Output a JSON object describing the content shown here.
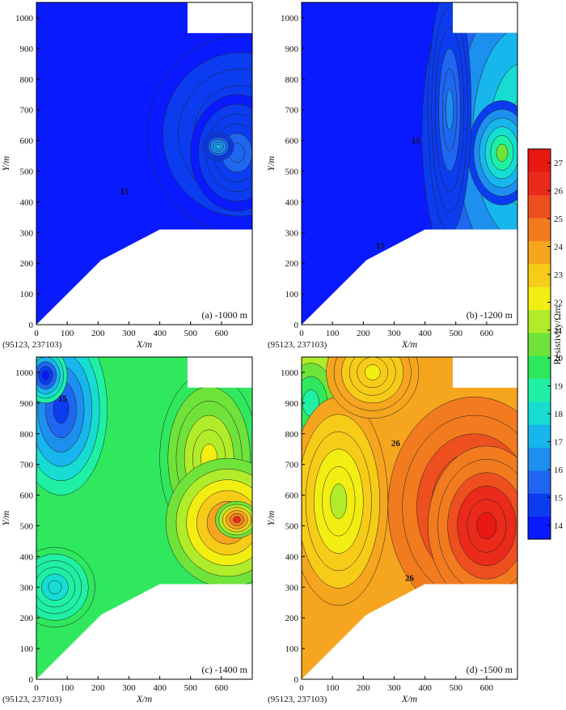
{
  "colorbar": {
    "label": "Resistivity/Ωm",
    "min": 13.5,
    "max": 27.5,
    "ticks": [
      14,
      15,
      16,
      17,
      18,
      19,
      20,
      21,
      22,
      23,
      24,
      25,
      26,
      27
    ],
    "colors": [
      "#0a1aff",
      "#0b3cf0",
      "#1f66f0",
      "#1d8fef",
      "#17b6ec",
      "#16dcd2",
      "#1ff0a4",
      "#2fe85e",
      "#6fe33a",
      "#b0ec2a",
      "#f2ee12",
      "#f7cc19",
      "#f6a51f",
      "#f27b1f",
      "#ee4f1f",
      "#ea2a1a",
      "#e81813"
    ]
  },
  "chart_data": [
    {
      "type": "heatmap",
      "panel": "a",
      "label": "(a) -1000 m",
      "xlabel": "X/m",
      "ylabel": "Y/m",
      "xlim": [
        0,
        700
      ],
      "ylim": [
        0,
        1050
      ],
      "xticks": [
        0,
        100,
        200,
        300,
        400,
        500,
        600
      ],
      "yticks": [
        0,
        100,
        200,
        300,
        400,
        500,
        600,
        700,
        800,
        900,
        1000
      ],
      "origin_label": "(95123, 237103)",
      "contour_labels": [
        {
          "value": "15",
          "x": 285,
          "y": 425
        }
      ],
      "bg_value": 14.0,
      "blobs": [
        {
          "x": 660,
          "y": 620,
          "rx": 300,
          "ry": 320,
          "v": 15.0
        },
        {
          "x": 650,
          "y": 560,
          "rx": 150,
          "ry": 190,
          "v": 15.7
        },
        {
          "x": 590,
          "y": 580,
          "rx": 50,
          "ry": 45,
          "v": 17.0
        }
      ]
    },
    {
      "type": "heatmap",
      "panel": "b",
      "label": "(b) -1200 m",
      "xlabel": "X/m",
      "ylabel": "Y/m",
      "xlim": [
        0,
        700
      ],
      "ylim": [
        0,
        1050
      ],
      "xticks": [
        0,
        100,
        200,
        300,
        400,
        500,
        600
      ],
      "yticks": [
        0,
        100,
        200,
        300,
        400,
        500,
        600,
        700,
        800,
        900,
        1000
      ],
      "origin_label": "(95123, 237103)",
      "contour_labels": [
        {
          "value": "15",
          "x": 370,
          "y": 590
        },
        {
          "value": "15",
          "x": 255,
          "y": 248
        }
      ],
      "bg_value": 14.0,
      "blobs": [
        {
          "x": 720,
          "y": 620,
          "rx": 330,
          "ry": 700,
          "v": 19.0
        },
        {
          "x": 650,
          "y": 560,
          "rx": 110,
          "ry": 170,
          "v": 20.2
        },
        {
          "x": 480,
          "y": 700,
          "rx": 70,
          "ry": 400,
          "v": 16.0
        }
      ]
    },
    {
      "type": "heatmap",
      "panel": "c",
      "label": "(c) -1400 m",
      "xlabel": "X/m",
      "ylabel": "Y/m",
      "xlim": [
        0,
        700
      ],
      "ylim": [
        0,
        1050
      ],
      "xticks": [
        0,
        100,
        200,
        300,
        400,
        500,
        600
      ],
      "yticks": [
        0,
        100,
        200,
        300,
        400,
        500,
        600,
        700,
        800,
        900,
        1000
      ],
      "origin_label": "(95123, 237103)",
      "contour_labels": [
        {
          "value": "15",
          "x": 85,
          "y": 905
        }
      ],
      "bg_value": 19.5,
      "blobs": [
        {
          "x": 80,
          "y": 880,
          "rx": 150,
          "ry": 280,
          "v": 15.0
        },
        {
          "x": 30,
          "y": 990,
          "rx": 70,
          "ry": 90,
          "v": 14.2
        },
        {
          "x": 560,
          "y": 720,
          "rx": 160,
          "ry": 280,
          "v": 21.8
        },
        {
          "x": 620,
          "y": 510,
          "rx": 200,
          "ry": 210,
          "v": 24.5
        },
        {
          "x": 650,
          "y": 520,
          "rx": 70,
          "ry": 60,
          "v": 26.0
        },
        {
          "x": 60,
          "y": 300,
          "rx": 130,
          "ry": 130,
          "v": 18.2
        }
      ]
    },
    {
      "type": "heatmap",
      "panel": "d",
      "label": "(d) -1500 m",
      "xlabel": "X/m",
      "ylabel": "Y/m",
      "xlim": [
        0,
        700
      ],
      "ylim": [
        0,
        1050
      ],
      "xticks": [
        0,
        100,
        200,
        300,
        400,
        500,
        600
      ],
      "yticks": [
        0,
        100,
        200,
        300,
        400,
        500,
        600,
        700,
        800,
        900,
        1000
      ],
      "origin_label": "(95123, 237103)",
      "contour_labels": [
        {
          "value": "26",
          "x": 305,
          "y": 760
        },
        {
          "value": "26",
          "x": 350,
          "y": 320
        }
      ],
      "bg_value": 24.0,
      "blobs": [
        {
          "x": 560,
          "y": 560,
          "rx": 280,
          "ry": 360,
          "v": 26.5
        },
        {
          "x": 600,
          "y": 500,
          "rx": 190,
          "ry": 260,
          "v": 27.0
        },
        {
          "x": 30,
          "y": 900,
          "rx": 160,
          "ry": 260,
          "v": 19.0
        },
        {
          "x": 120,
          "y": 580,
          "rx": 160,
          "ry": 340,
          "v": 21.5
        },
        {
          "x": 230,
          "y": 1000,
          "rx": 150,
          "ry": 150,
          "v": 22.5
        }
      ]
    }
  ]
}
